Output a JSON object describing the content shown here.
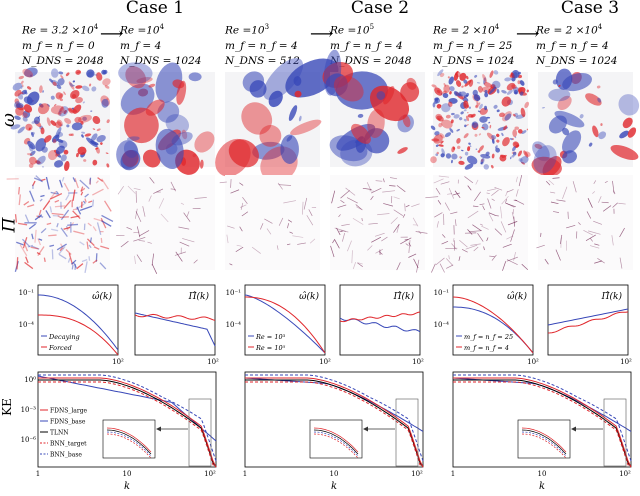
{
  "cases": [
    {
      "title": "Case 1",
      "left": {
        "re": "Re = 3.2 ×10",
        "re_exp": "4",
        "m": "m_f = n_f = 0",
        "n": "N_DNS = 2048"
      },
      "right": {
        "re": "Re =10",
        "re_exp": "4",
        "m": "m_f = 4",
        "n": "N_DNS = 1024"
      },
      "legend": [
        "Decaying",
        "Forced"
      ]
    },
    {
      "title": "Case 2",
      "left": {
        "re": "Re =10",
        "re_exp": "3",
        "m": "m_f = n_f = 4",
        "n": "N_DNS = 512"
      },
      "right": {
        "re": "Re =10",
        "re_exp": "5",
        "m": "m_f = n_f = 4",
        "n": "N_DNS = 2048"
      },
      "legend": [
        "Re = 10³",
        "Re = 10⁵"
      ]
    },
    {
      "title": "Case 3",
      "left": {
        "re": "Re = 2 ×10",
        "re_exp": "4",
        "m": "m_f = n_f = 25",
        "n": "N_DNS = 1024"
      },
      "right": {
        "re": "Re = 2 ×10",
        "re_exp": "4",
        "m": "m_f = n_f = 4",
        "n": "N_DNS = 1024"
      },
      "legend": [
        "m_f = n_f = 25",
        "m_f = n_f = 4"
      ]
    }
  ],
  "arrow": "⟶",
  "row_labels": {
    "omega": "ω",
    "pi": "Π",
    "ke": "KE"
  },
  "spectrum_titles": {
    "omega": "ω̂(k)",
    "pi": "Π̂(k)"
  },
  "spec_ticks": {
    "y": [
      "10⁻¹",
      "10⁻⁴"
    ],
    "x": [
      "1",
      "10",
      "10²"
    ]
  },
  "ke_ticks": {
    "y": [
      "10⁰",
      "10⁻³",
      "10⁻⁶"
    ],
    "x": [
      "1",
      "10",
      "10²"
    ]
  },
  "ke_xlabel": "k",
  "ke_legend": [
    "FDNS_large",
    "FDNS_base",
    "TLNN",
    "BNN_target",
    "BNN_base"
  ],
  "colors": {
    "red": "#e0262b",
    "blue": "#3848b8",
    "purple": "#6a1a4a"
  }
}
